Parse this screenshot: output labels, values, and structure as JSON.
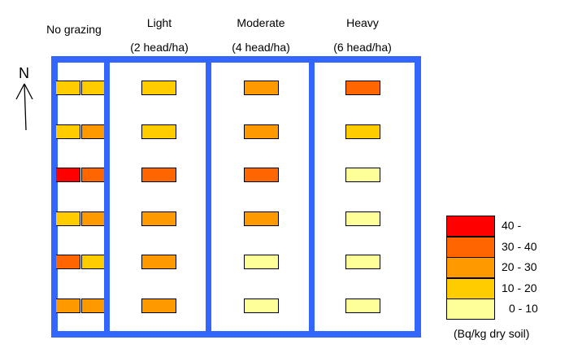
{
  "headers": [
    {
      "title": "No grazing",
      "sub": ""
    },
    {
      "title": "Light",
      "sub": "(2 head/ha)"
    },
    {
      "title": "Moderate",
      "sub": "(4 head/ha)"
    },
    {
      "title": "Heavy",
      "sub": "(6 head/ha)"
    }
  ],
  "north_label": "N",
  "colors": {
    "c40": "#ff0000",
    "c30": "#ff6600",
    "c20": "#ff9900",
    "c10": "#ffcc00",
    "c0": "#ffff99"
  },
  "columns": [
    {
      "name": "No grazing",
      "cells": [
        [
          "c10",
          "c10"
        ],
        [
          "c10",
          "c20"
        ],
        [
          "c40",
          "c30"
        ],
        [
          "c10",
          "c20"
        ],
        [
          "c30",
          "c10"
        ],
        [
          "c20",
          "c20"
        ]
      ]
    },
    {
      "name": "Light",
      "cells": [
        [
          "c10"
        ],
        [
          "c10"
        ],
        [
          "c30"
        ],
        [
          "c20"
        ],
        [
          "c20"
        ],
        [
          "c20"
        ]
      ]
    },
    {
      "name": "Moderate",
      "cells": [
        [
          "c20"
        ],
        [
          "c20"
        ],
        [
          "c30"
        ],
        [
          "c20"
        ],
        [
          "c0"
        ],
        [
          "c0"
        ]
      ]
    },
    {
      "name": "Heavy",
      "cells": [
        [
          "c30"
        ],
        [
          "c10"
        ],
        [
          "c0"
        ],
        [
          "c0"
        ],
        [
          "c0"
        ],
        [
          "c0"
        ]
      ]
    }
  ],
  "legend": {
    "items": [
      {
        "key": "c40",
        "label": "40 -"
      },
      {
        "key": "c30",
        "label": "30 - 40"
      },
      {
        "key": "c20",
        "label": "20 - 30"
      },
      {
        "key": "c10",
        "label": "10 - 20"
      },
      {
        "key": "c0",
        "label": "0 - 10"
      }
    ],
    "unit": "(Bq/kg dry soil)"
  }
}
